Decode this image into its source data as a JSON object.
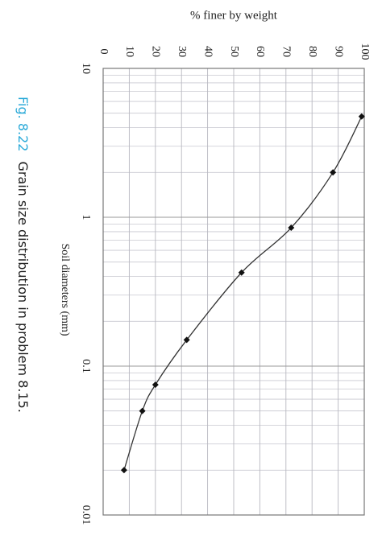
{
  "chart_data": {
    "type": "line",
    "y_label": "% finer by weight",
    "x_label": "Soil diameters (mm)",
    "x": [
      4.75,
      2.0,
      0.85,
      0.425,
      0.15,
      0.075,
      0.05,
      0.02
    ],
    "values": [
      99,
      88,
      72,
      53,
      32,
      20,
      15,
      8
    ],
    "color": "#333333",
    "xscale": "log",
    "xlim": [
      0.01,
      10
    ],
    "xticks": [
      10,
      1,
      0.1,
      0.01
    ],
    "x_minor_ticks": [
      0.02,
      0.03,
      0.04,
      0.05,
      0.06,
      0.07,
      0.08,
      0.09,
      0.2,
      0.3,
      0.4,
      0.5,
      0.6,
      0.7,
      0.8,
      0.9,
      2,
      3,
      4,
      5,
      6,
      7,
      8,
      9
    ],
    "ylim": [
      0,
      100
    ],
    "yticks": [
      0,
      10,
      20,
      30,
      40,
      50,
      60,
      70,
      80,
      90,
      100
    ],
    "grid": true
  },
  "figure": {
    "label": "Fig. 8.22",
    "caption": "Grain size distribution in problem 8.15."
  }
}
